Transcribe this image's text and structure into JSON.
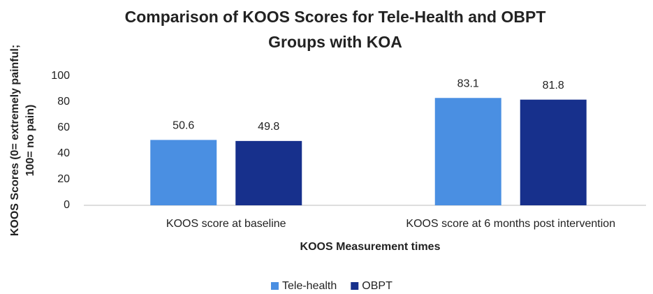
{
  "chart_data": {
    "type": "bar",
    "title": [
      "Comparison of KOOS Scores for Tele-Health and OBPT",
      "Groups with KOA"
    ],
    "y_label": [
      "KOOS Scores (0= extremely painful;",
      "100= no pain)"
    ],
    "x_label": "KOOS Measurement times",
    "categories": [
      "KOOS score at baseline",
      "KOOS score at 6 months post intervention"
    ],
    "series": [
      {
        "name": "Tele-health",
        "color": "#4a8fe2",
        "values": [
          50.6,
          83.1
        ]
      },
      {
        "name": "OBPT",
        "color": "#17308c",
        "values": [
          49.8,
          81.8
        ]
      }
    ],
    "ylim": [
      0,
      100
    ],
    "yticks": [
      0,
      20,
      40,
      60,
      80,
      100
    ],
    "grid": false,
    "legend": "bottom"
  }
}
